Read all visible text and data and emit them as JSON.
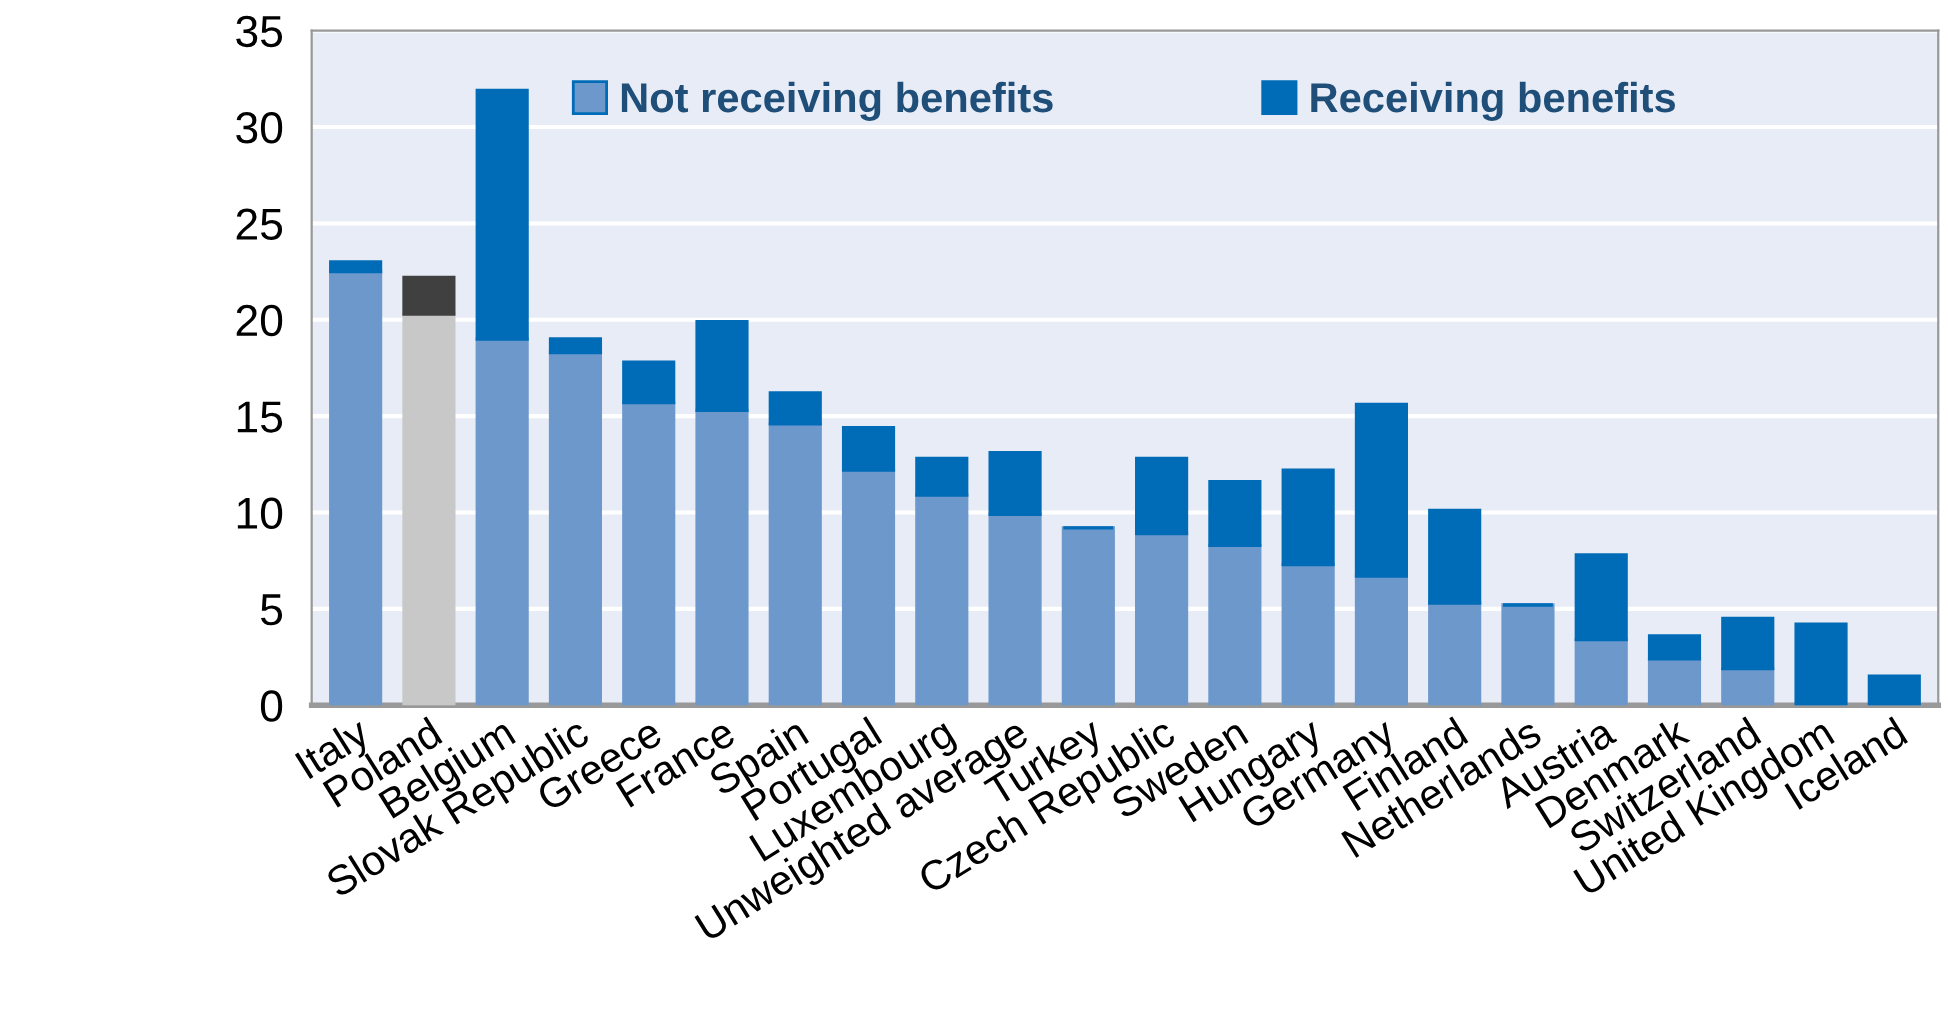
{
  "chart_data": {
    "type": "bar",
    "stacked": true,
    "categories": [
      "Italy",
      "Poland",
      "Belgium",
      "Slovak Republic",
      "Greece",
      "France",
      "Spain",
      "Portugal",
      "Luxembourg",
      "Unweighted average",
      "Turkey",
      "Czech Republic",
      "Sweden",
      "Hungary",
      "Germany",
      "Finland",
      "Netherlands",
      "Austria",
      "Denmark",
      "Switzerland",
      "United Kingdom",
      "Iceland"
    ],
    "series": [
      {
        "name": "Not receiving benefits",
        "color": "#6c98cc",
        "colors": [
          "#6c98cc",
          "#c8c8c8",
          "#6c98cc",
          "#6c98cc",
          "#6c98cc",
          "#6c98cc",
          "#6c98cc",
          "#6c98cc",
          "#6c98cc",
          "#6c98cc",
          "#6c98cc",
          "#6c98cc",
          "#6c98cc",
          "#6c98cc",
          "#6c98cc",
          "#6c98cc",
          "#6c98cc",
          "#6c98cc",
          "#6c98cc",
          "#6c98cc",
          "#6c98cc",
          "#6c98cc"
        ],
        "values": [
          22.5,
          20.3,
          19.0,
          18.3,
          15.7,
          15.3,
          14.6,
          12.2,
          10.9,
          9.9,
          9.2,
          8.9,
          8.3,
          7.3,
          6.7,
          5.3,
          5.2,
          3.4,
          2.4,
          1.9,
          0,
          0
        ]
      },
      {
        "name": "Receiving benefits",
        "color": "#006bb6",
        "colors": [
          "#006bb6",
          "#404040",
          "#006bb6",
          "#006bb6",
          "#006bb6",
          "#006bb6",
          "#006bb6",
          "#006bb6",
          "#006bb6",
          "#006bb6",
          "#006bb6",
          "#006bb6",
          "#006bb6",
          "#006bb6",
          "#006bb6",
          "#006bb6",
          "#006bb6",
          "#006bb6",
          "#006bb6",
          "#006bb6",
          "#006bb6",
          "#006bb6"
        ],
        "values": [
          0.5,
          1.9,
          12.9,
          0.7,
          2.1,
          4.6,
          1.6,
          2.2,
          1.9,
          3.2,
          0,
          3.9,
          3.3,
          4.9,
          8.9,
          4.8,
          0,
          4.4,
          1.2,
          2.6,
          4.2,
          1.5
        ]
      }
    ],
    "ylim": [
      0,
      35
    ],
    "yticks": [
      0,
      5,
      10,
      15,
      20,
      25,
      30,
      35
    ],
    "grid": "y",
    "legend": "top"
  }
}
